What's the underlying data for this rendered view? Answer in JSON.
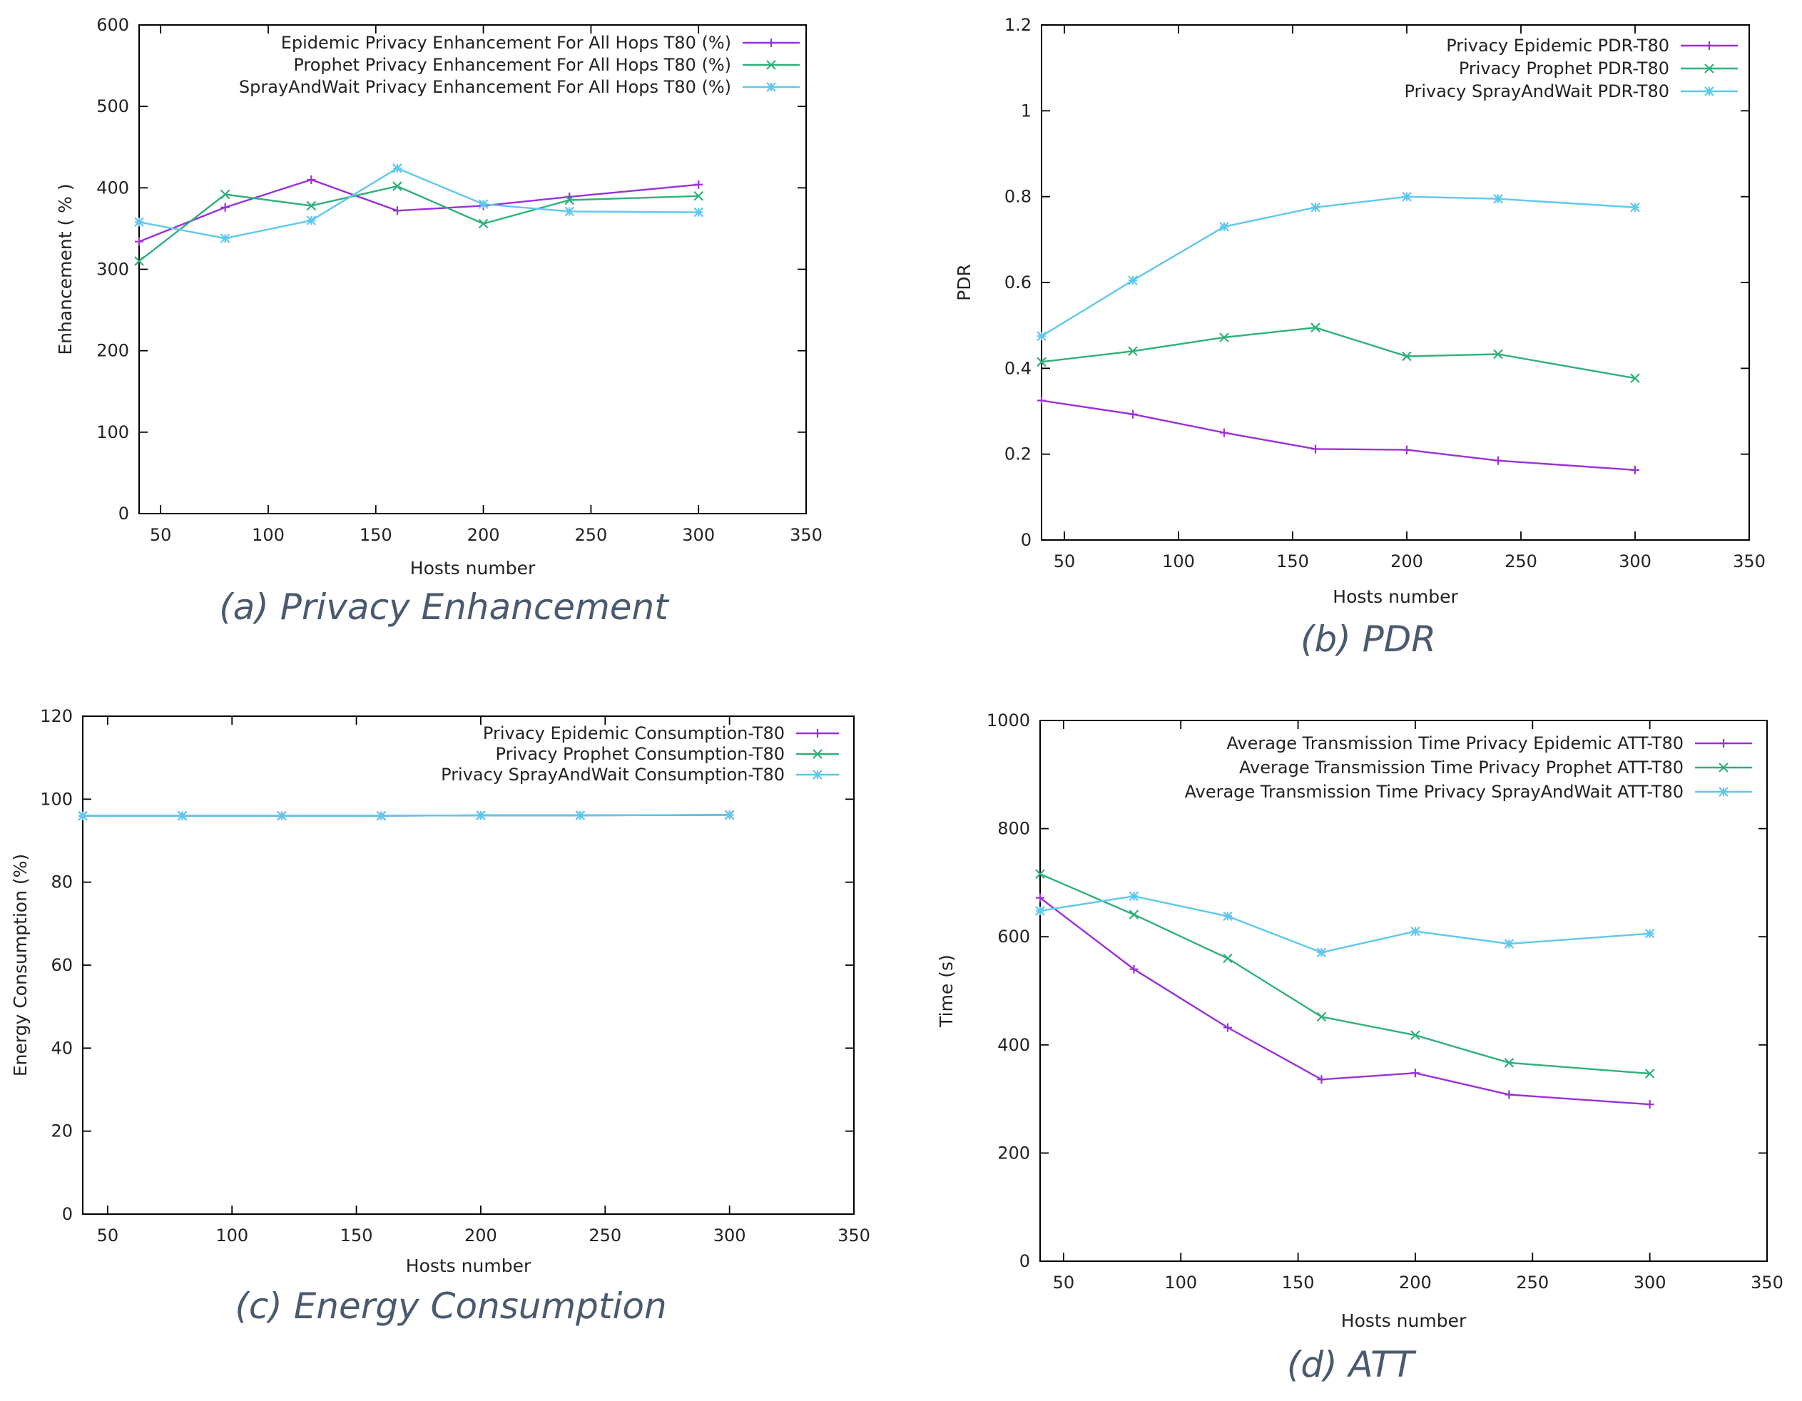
{
  "captions": {
    "a": "(a) Privacy Enhancement",
    "b": "(b) PDR",
    "c": "(c) Energy Consumption",
    "d": "(d) ATT"
  },
  "colors": {
    "epidemic": "#9b30d9",
    "prophet": "#2fb07a",
    "spraywait": "#5ec8ee",
    "axis": "#000000"
  },
  "chart_data": [
    {
      "id": "a",
      "type": "line",
      "title": "(a) Privacy Enhancement",
      "xlabel": "Hosts number",
      "ylabel": "Enhancement ( % )",
      "xlim": [
        40,
        350
      ],
      "ylim": [
        0,
        600
      ],
      "xticks": [
        50,
        100,
        150,
        200,
        250,
        300,
        350
      ],
      "yticks": [
        0,
        100,
        200,
        300,
        400,
        500,
        600
      ],
      "legend": "top-right",
      "series": [
        {
          "name": "Epidemic Privacy Enhancement For All Hops T80 (%)",
          "color": "#9b30d9",
          "marker": "plus",
          "x": [
            40,
            80,
            120,
            160,
            200,
            240,
            300
          ],
          "y": [
            334,
            376,
            410,
            372,
            378,
            389,
            404
          ]
        },
        {
          "name": "Prophet Privacy Enhancement For All Hops T80 (%)",
          "color": "#2fb07a",
          "marker": "cross",
          "x": [
            40,
            80,
            120,
            160,
            200,
            240,
            300
          ],
          "y": [
            310,
            392,
            378,
            402,
            356,
            385,
            390
          ]
        },
        {
          "name": "SprayAndWait Privacy Enhancement For All Hops T80 (%)",
          "color": "#5ec8ee",
          "marker": "star",
          "x": [
            40,
            80,
            120,
            160,
            200,
            240,
            300
          ],
          "y": [
            358,
            338,
            360,
            424,
            380,
            371,
            370
          ]
        }
      ]
    },
    {
      "id": "b",
      "type": "line",
      "title": "(b) PDR",
      "xlabel": "Hosts number",
      "ylabel": "PDR",
      "xlim": [
        40,
        350
      ],
      "ylim": [
        0,
        1.2
      ],
      "xticks": [
        50,
        100,
        150,
        200,
        250,
        300,
        350
      ],
      "yticks": [
        0,
        0.2,
        0.4,
        0.6,
        0.8,
        1,
        1.2
      ],
      "legend": "top-right",
      "series": [
        {
          "name": "Privacy Epidemic PDR-T80",
          "color": "#9b30d9",
          "marker": "plus",
          "x": [
            40,
            80,
            120,
            160,
            200,
            240,
            300
          ],
          "y": [
            0.325,
            0.293,
            0.25,
            0.212,
            0.21,
            0.185,
            0.163
          ]
        },
        {
          "name": "Privacy Prophet PDR-T80",
          "color": "#2fb07a",
          "marker": "cross",
          "x": [
            40,
            80,
            120,
            160,
            200,
            240,
            300
          ],
          "y": [
            0.415,
            0.44,
            0.472,
            0.495,
            0.428,
            0.433,
            0.377
          ]
        },
        {
          "name": "Privacy SprayAndWait PDR-T80",
          "color": "#5ec8ee",
          "marker": "star",
          "x": [
            40,
            80,
            120,
            160,
            200,
            240,
            300
          ],
          "y": [
            0.475,
            0.605,
            0.73,
            0.775,
            0.8,
            0.795,
            0.775
          ]
        }
      ]
    },
    {
      "id": "c",
      "type": "line",
      "title": "(c) Energy Consumption",
      "xlabel": "Hosts number",
      "ylabel": "Energy Consumption (%)",
      "xlim": [
        40,
        350
      ],
      "ylim": [
        0,
        120
      ],
      "xticks": [
        50,
        100,
        150,
        200,
        250,
        300,
        350
      ],
      "yticks": [
        0,
        20,
        40,
        60,
        80,
        100,
        120
      ],
      "legend": "top-right",
      "series": [
        {
          "name": "Privacy Epidemic Consumption-T80",
          "color": "#9b30d9",
          "marker": "plus",
          "x": [
            40,
            80,
            120,
            160,
            200,
            240,
            300
          ],
          "y": [
            96,
            96,
            96,
            96,
            96.1,
            96.1,
            96.2
          ]
        },
        {
          "name": "Privacy Prophet Consumption-T80",
          "color": "#2fb07a",
          "marker": "cross",
          "x": [
            40,
            80,
            120,
            160,
            200,
            240,
            300
          ],
          "y": [
            96,
            96,
            96,
            96,
            96.1,
            96.1,
            96.2
          ]
        },
        {
          "name": "Privacy SprayAndWait Consumption-T80",
          "color": "#5ec8ee",
          "marker": "star",
          "x": [
            40,
            80,
            120,
            160,
            200,
            240,
            300
          ],
          "y": [
            96,
            96,
            96,
            96,
            96.1,
            96.1,
            96.2
          ]
        }
      ]
    },
    {
      "id": "d",
      "type": "line",
      "title": "(d) ATT",
      "xlabel": "Hosts number",
      "ylabel": "Time (s)",
      "xlim": [
        40,
        350
      ],
      "ylim": [
        0,
        1000
      ],
      "xticks": [
        50,
        100,
        150,
        200,
        250,
        300,
        350
      ],
      "yticks": [
        0,
        200,
        400,
        600,
        800,
        1000
      ],
      "legend": "top-right",
      "series": [
        {
          "name": "Average Transmission Time Privacy Epidemic ATT-T80",
          "color": "#9b30d9",
          "marker": "plus",
          "x": [
            40,
            80,
            120,
            160,
            200,
            240,
            300
          ],
          "y": [
            672,
            540,
            432,
            336,
            348,
            308,
            290
          ]
        },
        {
          "name": "Average Transmission Time Privacy Prophet ATT-T80",
          "color": "#2fb07a",
          "marker": "cross",
          "x": [
            40,
            80,
            120,
            160,
            200,
            240,
            300
          ],
          "y": [
            716,
            641,
            560,
            452,
            418,
            367,
            347
          ]
        },
        {
          "name": "Average Transmission Time Privacy SprayAndWait ATT-T80",
          "color": "#5ec8ee",
          "marker": "star",
          "x": [
            40,
            80,
            120,
            160,
            200,
            240,
            300
          ],
          "y": [
            648,
            675,
            638,
            571,
            610,
            587,
            606
          ]
        }
      ]
    }
  ]
}
